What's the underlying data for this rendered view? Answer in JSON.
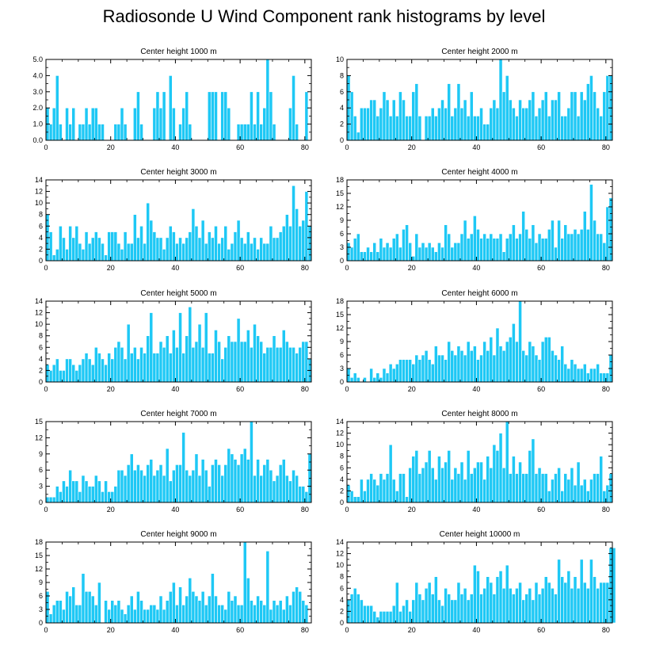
{
  "title": "Radiosonde U Wind Component rank histograms by level",
  "colors": {
    "bar": "#1ec8f5",
    "bar_edge": "#ffffff",
    "axis": "#000000"
  },
  "chart_data": [
    {
      "type": "bar",
      "title": "Center height 1000 m",
      "x": {
        "min": 0,
        "max": 82,
        "ticks": [
          0,
          20,
          40,
          60,
          80
        ]
      },
      "ylim": [
        0,
        5
      ],
      "yticks": [
        0,
        1,
        2,
        3,
        4,
        5
      ],
      "ytick_labels": [
        "0.0",
        "1.0",
        "2.0",
        "3.0",
        "4.0",
        "5.0"
      ],
      "values": [
        2,
        1,
        2,
        4,
        1,
        0,
        2,
        1,
        2,
        0,
        1,
        1,
        2,
        1,
        2,
        2,
        1,
        1,
        0,
        0,
        0,
        1,
        1,
        2,
        1,
        0,
        0,
        2,
        3,
        1,
        0,
        0,
        0,
        2,
        3,
        2,
        3,
        0,
        4,
        2,
        0,
        1,
        2,
        3,
        1,
        0,
        0,
        0,
        0,
        0,
        3,
        3,
        3,
        0,
        3,
        3,
        2,
        0,
        0,
        1,
        1,
        1,
        1,
        3,
        1,
        3,
        1,
        2,
        5,
        3,
        1,
        0,
        0,
        0,
        0,
        2,
        4,
        1,
        0,
        0,
        3,
        0
      ]
    },
    {
      "type": "bar",
      "title": "Center height 2000 m",
      "x": {
        "min": 0,
        "max": 82,
        "ticks": [
          0,
          20,
          40,
          60,
          80
        ]
      },
      "ylim": [
        0,
        10
      ],
      "yticks": [
        0,
        2,
        4,
        6,
        8,
        10
      ],
      "ytick_labels": [
        "0",
        "2",
        "4",
        "6",
        "8",
        "10"
      ],
      "values": [
        8,
        6,
        3,
        1,
        4,
        4,
        4,
        5,
        5,
        3,
        4,
        6,
        5,
        3,
        5,
        3,
        6,
        5,
        3,
        3,
        6,
        7,
        3,
        0,
        3,
        3,
        4,
        3,
        4,
        5,
        4,
        7,
        3,
        4,
        7,
        4,
        5,
        3,
        6,
        3,
        3,
        4,
        2,
        2,
        4,
        5,
        4,
        10,
        6,
        8,
        5,
        4,
        3,
        5,
        4,
        4,
        5,
        6,
        3,
        4,
        5,
        6,
        3,
        5,
        5,
        6,
        3,
        3,
        4,
        6,
        6,
        3,
        6,
        5,
        7,
        8,
        6,
        4,
        3,
        6,
        8,
        8
      ]
    },
    {
      "type": "bar",
      "title": "Center height 3000 m",
      "x": {
        "min": 0,
        "max": 82,
        "ticks": [
          0,
          20,
          40,
          60,
          80
        ]
      },
      "ylim": [
        0,
        14
      ],
      "yticks": [
        0,
        2,
        4,
        6,
        8,
        10,
        12,
        14
      ],
      "ytick_labels": [
        "0",
        "2",
        "4",
        "6",
        "8",
        "10",
        "12",
        "14"
      ],
      "values": [
        8,
        5,
        1,
        2,
        6,
        4,
        2,
        6,
        4,
        6,
        3,
        2,
        5,
        3,
        4,
        5,
        4,
        3,
        1,
        5,
        5,
        5,
        3,
        2,
        5,
        3,
        3,
        8,
        4,
        6,
        3,
        10,
        7,
        5,
        4,
        4,
        2,
        4,
        6,
        5,
        3,
        4,
        3,
        4,
        5,
        9,
        6,
        4,
        7,
        3,
        5,
        4,
        6,
        3,
        4,
        6,
        2,
        3,
        5,
        7,
        4,
        3,
        5,
        3,
        4,
        2,
        4,
        3,
        3,
        6,
        4,
        4,
        5,
        6,
        8,
        6,
        13,
        9,
        6,
        7,
        12,
        6
      ]
    },
    {
      "type": "bar",
      "title": "Center height 4000 m",
      "x": {
        "min": 0,
        "max": 82,
        "ticks": [
          0,
          20,
          40,
          60,
          80
        ]
      },
      "ylim": [
        0,
        18
      ],
      "yticks": [
        0,
        3,
        6,
        9,
        12,
        15,
        18
      ],
      "ytick_labels": [
        "0",
        "3",
        "6",
        "9",
        "12",
        "15",
        "18"
      ],
      "values": [
        4,
        3,
        5,
        6,
        2,
        2,
        3,
        2,
        4,
        2,
        5,
        3,
        4,
        3,
        5,
        6,
        3,
        7,
        8,
        4,
        1,
        6,
        3,
        4,
        3,
        4,
        3,
        2,
        4,
        3,
        8,
        6,
        3,
        4,
        4,
        6,
        9,
        5,
        6,
        10,
        7,
        5,
        6,
        5,
        6,
        5,
        5,
        6,
        2,
        5,
        6,
        8,
        5,
        6,
        11,
        7,
        5,
        8,
        4,
        6,
        5,
        5,
        7,
        9,
        3,
        9,
        5,
        8,
        6,
        6,
        7,
        6,
        7,
        11,
        7,
        17,
        9,
        6,
        6,
        4,
        12,
        14
      ]
    },
    {
      "type": "bar",
      "title": "Center height 5000 m",
      "x": {
        "min": 0,
        "max": 82,
        "ticks": [
          0,
          20,
          40,
          60,
          80
        ]
      },
      "ylim": [
        0,
        14
      ],
      "yticks": [
        0,
        2,
        4,
        6,
        8,
        10,
        12,
        14
      ],
      "ytick_labels": [
        "0",
        "2",
        "4",
        "6",
        "8",
        "10",
        "12",
        "14"
      ],
      "values": [
        3,
        2,
        3,
        4,
        2,
        2,
        4,
        4,
        3,
        2,
        3,
        4,
        5,
        4,
        3,
        6,
        5,
        4,
        3,
        5,
        4,
        6,
        7,
        6,
        4,
        10,
        5,
        6,
        4,
        6,
        5,
        8,
        12,
        5,
        5,
        7,
        6,
        8,
        5,
        9,
        6,
        12,
        5,
        8,
        13,
        6,
        7,
        10,
        6,
        12,
        5,
        5,
        9,
        7,
        4,
        6,
        8,
        7,
        7,
        11,
        7,
        7,
        9,
        6,
        10,
        8,
        7,
        5,
        6,
        6,
        8,
        6,
        6,
        9,
        7,
        6,
        6,
        5,
        6,
        7,
        7,
        4
      ]
    },
    {
      "type": "bar",
      "title": "Center height 6000 m",
      "x": {
        "min": 0,
        "max": 82,
        "ticks": [
          0,
          20,
          40,
          60,
          80
        ]
      },
      "ylim": [
        0,
        18
      ],
      "yticks": [
        0,
        3,
        6,
        9,
        12,
        15,
        18
      ],
      "ytick_labels": [
        "0",
        "3",
        "6",
        "9",
        "12",
        "15",
        "18"
      ],
      "values": [
        3,
        1,
        2,
        1,
        0,
        1,
        0,
        3,
        1,
        2,
        1,
        3,
        2,
        4,
        3,
        4,
        5,
        5,
        5,
        5,
        4,
        6,
        5,
        6,
        7,
        5,
        4,
        8,
        6,
        6,
        5,
        9,
        7,
        6,
        8,
        7,
        6,
        9,
        7,
        8,
        5,
        6,
        9,
        7,
        10,
        6,
        12,
        8,
        7,
        9,
        10,
        13,
        9,
        18,
        7,
        6,
        9,
        8,
        6,
        5,
        9,
        10,
        10,
        7,
        6,
        5,
        8,
        4,
        3,
        5,
        4,
        3,
        3,
        4,
        2,
        3,
        3,
        4,
        2,
        2,
        2,
        6
      ]
    },
    {
      "type": "bar",
      "title": "Center height 7000 m",
      "x": {
        "min": 0,
        "max": 82,
        "ticks": [
          0,
          20,
          40,
          60,
          80
        ]
      },
      "ylim": [
        0,
        15
      ],
      "yticks": [
        0,
        3,
        6,
        9,
        12,
        15
      ],
      "ytick_labels": [
        "0",
        "3",
        "6",
        "9",
        "12",
        "15"
      ],
      "values": [
        1,
        1,
        1,
        3,
        2,
        4,
        3,
        6,
        4,
        4,
        2,
        5,
        4,
        3,
        3,
        5,
        4,
        2,
        4,
        2,
        2,
        3,
        6,
        6,
        5,
        7,
        9,
        6,
        7,
        6,
        5,
        7,
        8,
        5,
        6,
        7,
        5,
        10,
        4,
        6,
        7,
        7,
        13,
        6,
        5,
        6,
        9,
        5,
        8,
        6,
        3,
        7,
        8,
        7,
        5,
        7,
        10,
        9,
        8,
        7,
        9,
        10,
        8,
        15,
        5,
        8,
        5,
        7,
        8,
        6,
        4,
        5,
        7,
        8,
        5,
        4,
        6,
        5,
        3,
        3,
        2,
        9
      ]
    },
    {
      "type": "bar",
      "title": "Center height 8000 m",
      "x": {
        "min": 0,
        "max": 82,
        "ticks": [
          0,
          20,
          40,
          60,
          80
        ]
      },
      "ylim": [
        0,
        14
      ],
      "yticks": [
        0,
        2,
        4,
        6,
        8,
        10,
        12,
        14
      ],
      "ytick_labels": [
        "0",
        "2",
        "4",
        "6",
        "8",
        "10",
        "12",
        "14"
      ],
      "values": [
        3,
        2,
        1,
        1,
        4,
        2,
        4,
        5,
        4,
        3,
        5,
        4,
        5,
        10,
        4,
        2,
        5,
        5,
        1,
        6,
        8,
        9,
        5,
        6,
        7,
        9,
        6,
        4,
        8,
        6,
        7,
        9,
        4,
        6,
        5,
        7,
        4,
        9,
        5,
        6,
        7,
        7,
        4,
        8,
        6,
        10,
        9,
        12,
        6,
        14,
        5,
        8,
        5,
        7,
        5,
        5,
        9,
        11,
        5,
        6,
        5,
        5,
        2,
        4,
        5,
        6,
        2,
        5,
        4,
        6,
        3,
        7,
        3,
        4,
        2,
        4,
        5,
        5,
        8,
        2,
        3,
        5
      ]
    },
    {
      "type": "bar",
      "title": "Center height 9000 m",
      "x": {
        "min": 0,
        "max": 82,
        "ticks": [
          0,
          20,
          40,
          60,
          80
        ]
      },
      "ylim": [
        0,
        18
      ],
      "yticks": [
        0,
        3,
        6,
        9,
        12,
        15,
        18
      ],
      "ytick_labels": [
        "0",
        "3",
        "6",
        "9",
        "12",
        "15",
        "18"
      ],
      "values": [
        7,
        2,
        4,
        5,
        5,
        3,
        7,
        6,
        8,
        4,
        4,
        11,
        7,
        7,
        6,
        4,
        9,
        0,
        5,
        3,
        5,
        4,
        5,
        3,
        2,
        4,
        6,
        3,
        7,
        5,
        3,
        3,
        4,
        4,
        3,
        6,
        3,
        5,
        7,
        9,
        4,
        8,
        4,
        6,
        10,
        7,
        6,
        5,
        7,
        4,
        6,
        11,
        6,
        4,
        4,
        3,
        7,
        5,
        6,
        4,
        4,
        18,
        10,
        5,
        4,
        6,
        5,
        4,
        16,
        3,
        5,
        4,
        5,
        3,
        6,
        4,
        7,
        8,
        7,
        5,
        4,
        0
      ]
    },
    {
      "type": "bar",
      "title": "Center height 10000 m",
      "x": {
        "min": 0,
        "max": 82,
        "ticks": [
          0,
          20,
          40,
          60,
          80
        ]
      },
      "ylim": [
        0,
        14
      ],
      "yticks": [
        0,
        2,
        4,
        6,
        8,
        10,
        12,
        14
      ],
      "ytick_labels": [
        "0",
        "2",
        "4",
        "6",
        "8",
        "10",
        "12",
        "14"
      ],
      "values": [
        4,
        5,
        6,
        5,
        4,
        3,
        3,
        3,
        2,
        1,
        2,
        2,
        2,
        2,
        3,
        7,
        2,
        3,
        4,
        2,
        4,
        7,
        5,
        4,
        6,
        7,
        5,
        8,
        4,
        3,
        6,
        5,
        4,
        4,
        7,
        5,
        6,
        4,
        5,
        10,
        9,
        5,
        6,
        8,
        7,
        5,
        8,
        9,
        6,
        10,
        6,
        5,
        6,
        7,
        4,
        5,
        6,
        4,
        7,
        5,
        6,
        8,
        7,
        6,
        5,
        11,
        8,
        7,
        9,
        6,
        8,
        6,
        11,
        7,
        6,
        11,
        8,
        6,
        7,
        7,
        7,
        13,
        13
      ]
    }
  ]
}
